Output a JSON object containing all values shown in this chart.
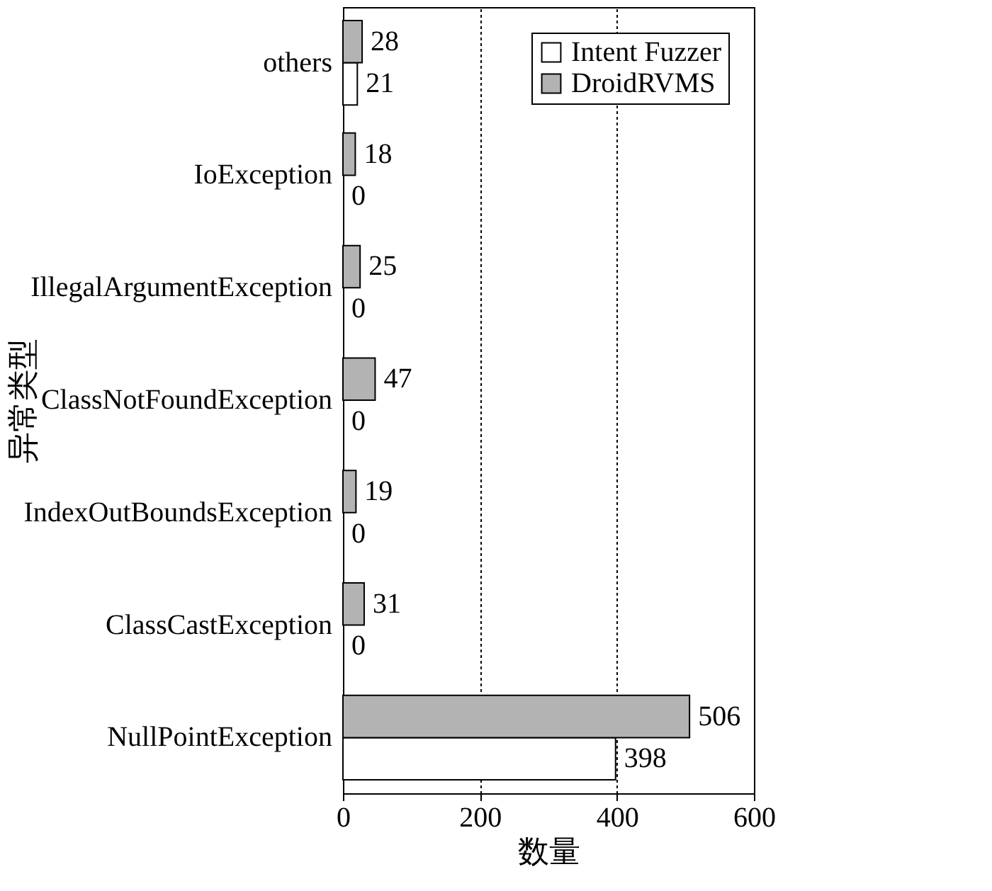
{
  "chart_data": {
    "type": "bar",
    "orientation": "horizontal",
    "xlabel": "数量",
    "ylabel": "异常类型",
    "categories": [
      "others",
      "IoException",
      "IllegalArgumentException",
      "ClassNotFoundException",
      "IndexOutBoundsException",
      "ClassCastException",
      "NullPointException"
    ],
    "series": [
      {
        "name": "Intent Fuzzer",
        "color": "#ffffff",
        "values": [
          21,
          0,
          0,
          0,
          0,
          0,
          398
        ]
      },
      {
        "name": "DroidRVMS",
        "color": "#b3b3b3",
        "values": [
          28,
          18,
          25,
          47,
          19,
          31,
          506
        ]
      }
    ],
    "xlim": [
      0,
      600
    ],
    "xticks": [
      0,
      200,
      400,
      600
    ],
    "grid": "x",
    "legend": "top right",
    "data_labels": true
  }
}
